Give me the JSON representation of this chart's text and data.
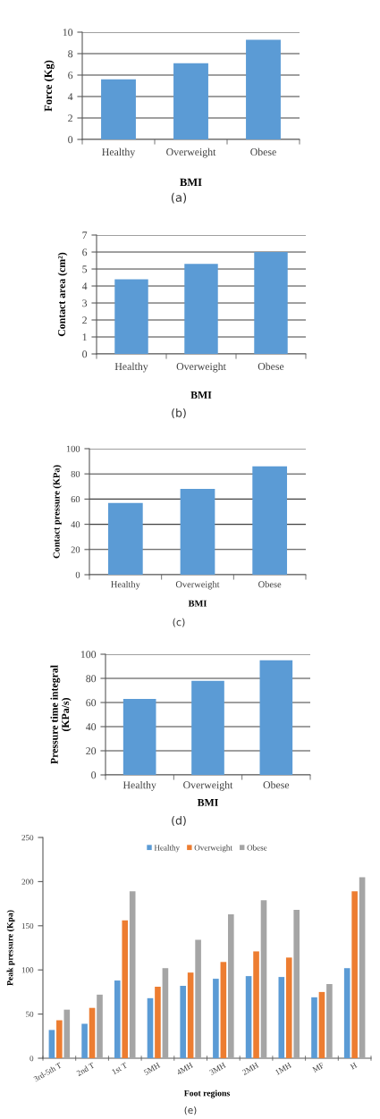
{
  "chart_data": [
    {
      "type": "bar",
      "categories": [
        "Healthy",
        "Overweight",
        "Obese"
      ],
      "values": [
        5.6,
        7.1,
        9.3
      ],
      "color": "#5b9bd5",
      "ylim": [
        0,
        10
      ],
      "yticks": [
        0,
        2,
        4,
        6,
        8,
        10
      ],
      "ylabel": "Force (Kg)",
      "xlabel": "BMI",
      "grid": "y",
      "annotations": [
        "(a)"
      ]
    },
    {
      "type": "bar",
      "categories": [
        "Healthy",
        "Overweight",
        "Obese"
      ],
      "values": [
        4.4,
        5.3,
        6.0
      ],
      "color": "#5b9bd5",
      "ylim": [
        0,
        7
      ],
      "yticks": [
        0,
        1,
        2,
        3,
        4,
        5,
        6,
        7
      ],
      "ylabel": "Contact area (cm²)",
      "xlabel": "BMI",
      "grid": "y",
      "annotations": [
        "(b)"
      ]
    },
    {
      "type": "bar",
      "categories": [
        "Healthy",
        "Overweight",
        "Obese"
      ],
      "values": [
        57,
        68,
        86
      ],
      "color": "#5b9bd5",
      "ylim": [
        0,
        100
      ],
      "yticks": [
        0,
        20,
        40,
        60,
        80,
        100
      ],
      "ylabel": "Contact pressure (KPa)",
      "xlabel": "BMI",
      "grid": "y",
      "annotations": [
        "(c)"
      ]
    },
    {
      "type": "bar",
      "categories": [
        "Healthy",
        "Overweight",
        "Obese"
      ],
      "values": [
        63,
        78,
        95
      ],
      "color": "#5b9bd5",
      "ylim": [
        0,
        100
      ],
      "yticks": [
        0,
        20,
        40,
        60,
        80,
        100
      ],
      "ylabel": "Pressure time integral\n(KPa/s)",
      "xlabel": "BMI",
      "grid": "y",
      "annotations": [
        "(d)"
      ]
    },
    {
      "type": "bar",
      "categories": [
        "3rd-5th T",
        "2nd T",
        "1st T",
        "5MH",
        "4MH",
        "3MH",
        "2MH",
        "1MH",
        "MF",
        "H"
      ],
      "series": [
        {
          "name": "Healthy",
          "color": "#5b9bd5",
          "values": [
            32,
            39,
            88,
            68,
            82,
            90,
            93,
            92,
            69,
            102
          ]
        },
        {
          "name": "Overweight",
          "color": "#ed7d31",
          "values": [
            43,
            57,
            156,
            81,
            97,
            109,
            121,
            114,
            75,
            189
          ]
        },
        {
          "name": "Obese",
          "color": "#a5a5a5",
          "values": [
            55,
            72,
            189,
            102,
            134,
            163,
            179,
            168,
            84,
            205
          ]
        }
      ],
      "ylim": [
        0,
        250
      ],
      "yticks": [
        0,
        50,
        100,
        150,
        200,
        250
      ],
      "ylabel": "Peak pressure (Kpa)",
      "xlabel": "Foot regions",
      "grid": false,
      "legend": "top",
      "annotations": [
        "(e)"
      ]
    }
  ]
}
